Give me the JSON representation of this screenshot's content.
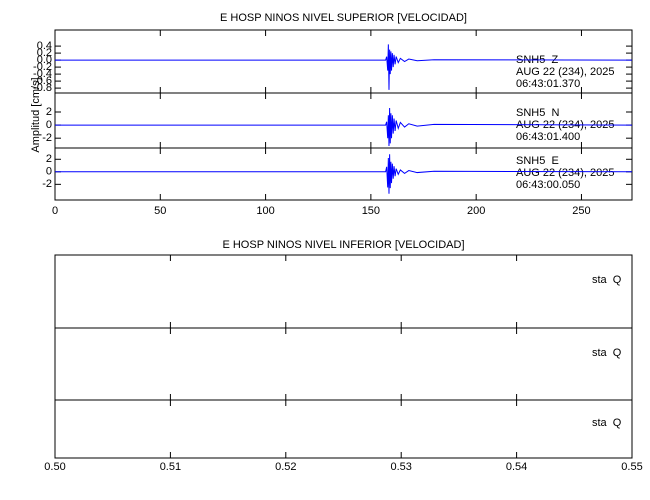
{
  "chart_data": [
    {
      "type": "line",
      "title": "E HOSP NINOS NIVEL SUPERIOR [VELOCIDAD]",
      "ylabel": "Amplitud [cm/s]",
      "xlim": [
        0,
        274
      ],
      "xticks": [
        0,
        50,
        100,
        150,
        200,
        250
      ],
      "x": [
        0,
        157,
        157.5,
        158,
        158.3,
        158.6,
        158.9,
        159.2,
        159.5,
        159.8,
        160.2,
        160.6,
        161,
        161.5,
        162,
        163,
        164,
        166,
        168,
        172,
        180,
        274
      ],
      "series": [
        {
          "name": "SNH5  Z",
          "date": "AUG 22 (234), 2025",
          "time": "06:43:01.370",
          "color": "#0000ff",
          "ylim": [
            -0.94,
            0.86
          ],
          "yticks": [
            0.4,
            0.2,
            {
              "value": 0,
              "label": "0.0"
            },
            -0.2,
            -0.4,
            -0.6,
            -0.8
          ],
          "values": [
            0,
            0,
            0.1,
            -0.3,
            0.45,
            -0.85,
            0.3,
            -0.4,
            0.25,
            -0.3,
            0.2,
            -0.2,
            0.15,
            -0.12,
            0.1,
            -0.07,
            0.05,
            -0.04,
            0.03,
            -0.02,
            0.01,
            0
          ]
        },
        {
          "name": "SNH5  N",
          "date": "AUG 22 (234), 2025",
          "time": "06:43:01.400",
          "color": "#0000ff",
          "ylim": [
            -3.5,
            4.9
          ],
          "yticks": [
            2,
            0,
            -2
          ],
          "values": [
            0,
            0,
            0.5,
            -2,
            1.5,
            -3.2,
            2.6,
            -2.8,
            1.8,
            -2,
            1.5,
            -1.3,
            1,
            -0.9,
            0.7,
            -0.5,
            0.4,
            -0.3,
            0.2,
            -0.15,
            0.1,
            0
          ]
        },
        {
          "name": "SNH5  E",
          "date": "AUG 22 (234), 2025",
          "time": "06:43:00.050",
          "color": "#0000ff",
          "ylim": [
            -4.5,
            3.8
          ],
          "yticks": [
            2,
            0,
            -2
          ],
          "values": [
            0,
            0,
            0.8,
            -2.5,
            2.2,
            -3.5,
            2.8,
            -2.6,
            1.6,
            -1.8,
            1.3,
            -1.1,
            0.9,
            -0.7,
            0.5,
            -0.4,
            0.3,
            -0.25,
            0.2,
            -0.12,
            0.08,
            0
          ]
        }
      ]
    },
    {
      "type": "line",
      "title": "E HOSP NINOS NIVEL INFERIOR [VELOCIDAD]",
      "xlim": [
        0.5,
        0.55
      ],
      "xticks": [
        {
          "value": 0.5,
          "label": "0.50"
        },
        0.51,
        0.52,
        0.53,
        0.54,
        0.55
      ],
      "series": [
        {
          "name": "sta  Q"
        },
        {
          "name": "sta  Q"
        },
        {
          "name": "sta  Q"
        }
      ]
    }
  ]
}
